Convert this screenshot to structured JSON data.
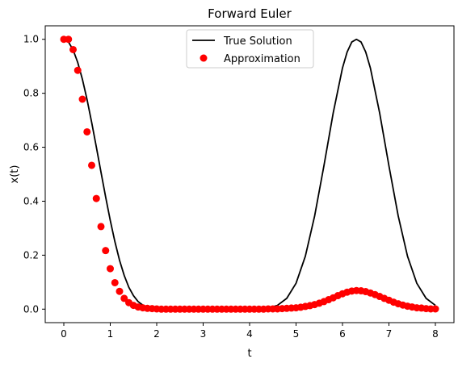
{
  "chart_data": {
    "type": "line",
    "title": "Forward Euler",
    "xlabel": "t",
    "ylabel": "x(t)",
    "xlim": [
      -0.4,
      8.4
    ],
    "ylim": [
      -0.05,
      1.05
    ],
    "xticks": [
      "0",
      "1",
      "2",
      "3",
      "4",
      "5",
      "6",
      "7",
      "8"
    ],
    "yticks": [
      "0.0",
      "0.2",
      "0.4",
      "0.6",
      "0.8",
      "1.0"
    ],
    "grid": false,
    "legend_position": "top-center",
    "legend": [
      "True Solution",
      "Approximation"
    ],
    "series": [
      {
        "name": "True Solution",
        "style": "line",
        "color": "#000000",
        "x": [
          0,
          0.1,
          0.2,
          0.3,
          0.4,
          0.5,
          0.6,
          0.7,
          0.8,
          0.9,
          1.0,
          1.1,
          1.2,
          1.3,
          1.4,
          1.5,
          1.6,
          1.7,
          1.8,
          1.9,
          2.0,
          2.2,
          2.4,
          2.6,
          2.8,
          3.0,
          3.2,
          3.4,
          3.6,
          3.8,
          4.0,
          4.2,
          4.4,
          4.6,
          4.8,
          5.0,
          5.2,
          5.4,
          5.6,
          5.8,
          6.0,
          6.1,
          6.2,
          6.3,
          6.4,
          6.5,
          6.6,
          6.8,
          7.0,
          7.2,
          7.4,
          7.6,
          7.8,
          8.0
        ],
        "y": [
          1.0,
          0.99,
          0.961,
          0.914,
          0.852,
          0.777,
          0.692,
          0.601,
          0.508,
          0.416,
          0.329,
          0.25,
          0.181,
          0.125,
          0.081,
          0.05,
          0.028,
          0.015,
          0.007,
          0.003,
          0.001,
          0.0,
          0.0,
          0.0,
          0.0,
          0.0,
          0.0,
          0.0,
          0.0,
          0.0,
          0.0,
          0.001,
          0.004,
          0.014,
          0.04,
          0.096,
          0.196,
          0.345,
          0.531,
          0.727,
          0.894,
          0.953,
          0.99,
          1.0,
          0.99,
          0.953,
          0.894,
          0.727,
          0.531,
          0.345,
          0.196,
          0.096,
          0.04,
          0.014
        ]
      },
      {
        "name": "Approximation",
        "style": "markers",
        "color": "#ff0000",
        "x": [
          0,
          0.1,
          0.2,
          0.3,
          0.4,
          0.5,
          0.6,
          0.7,
          0.8,
          0.9,
          1.0,
          1.1,
          1.2,
          1.3,
          1.4,
          1.5,
          1.6,
          1.7,
          1.8,
          1.9,
          2.0,
          2.1,
          2.2,
          2.3,
          2.4,
          2.5,
          2.6,
          2.7,
          2.8,
          2.9,
          3.0,
          3.1,
          3.2,
          3.3,
          3.4,
          3.5,
          3.6,
          3.7,
          3.8,
          3.9,
          4.0,
          4.1,
          4.2,
          4.3,
          4.4,
          4.5,
          4.6,
          4.7,
          4.8,
          4.9,
          5.0,
          5.1,
          5.2,
          5.3,
          5.4,
          5.5,
          5.6,
          5.7,
          5.8,
          5.9,
          6.0,
          6.1,
          6.2,
          6.3,
          6.4,
          6.5,
          6.6,
          6.7,
          6.8,
          6.9,
          7.0,
          7.1,
          7.2,
          7.3,
          7.4,
          7.5,
          7.6,
          7.7,
          7.8,
          7.9,
          8.0
        ],
        "y": [
          1.0,
          1.0,
          0.962,
          0.885,
          0.778,
          0.657,
          0.533,
          0.41,
          0.306,
          0.217,
          0.15,
          0.098,
          0.066,
          0.04,
          0.024,
          0.014,
          0.008,
          0.005,
          0.003,
          0.002,
          0.001,
          0.0,
          0.0,
          0.0,
          0.0,
          0.0,
          0.0,
          0.0,
          0.0,
          0.0,
          0.0,
          0.0,
          0.0,
          0.0,
          0.0,
          0.0,
          0.0,
          0.0,
          0.0,
          0.0,
          0.0,
          0.0,
          0.0,
          0.0,
          0.001,
          0.001,
          0.001,
          0.002,
          0.003,
          0.004,
          0.005,
          0.007,
          0.01,
          0.013,
          0.017,
          0.022,
          0.028,
          0.035,
          0.042,
          0.05,
          0.057,
          0.063,
          0.067,
          0.069,
          0.068,
          0.065,
          0.06,
          0.054,
          0.047,
          0.04,
          0.033,
          0.026,
          0.02,
          0.015,
          0.011,
          0.008,
          0.005,
          0.004,
          0.002,
          0.001,
          0.001
        ]
      }
    ]
  }
}
